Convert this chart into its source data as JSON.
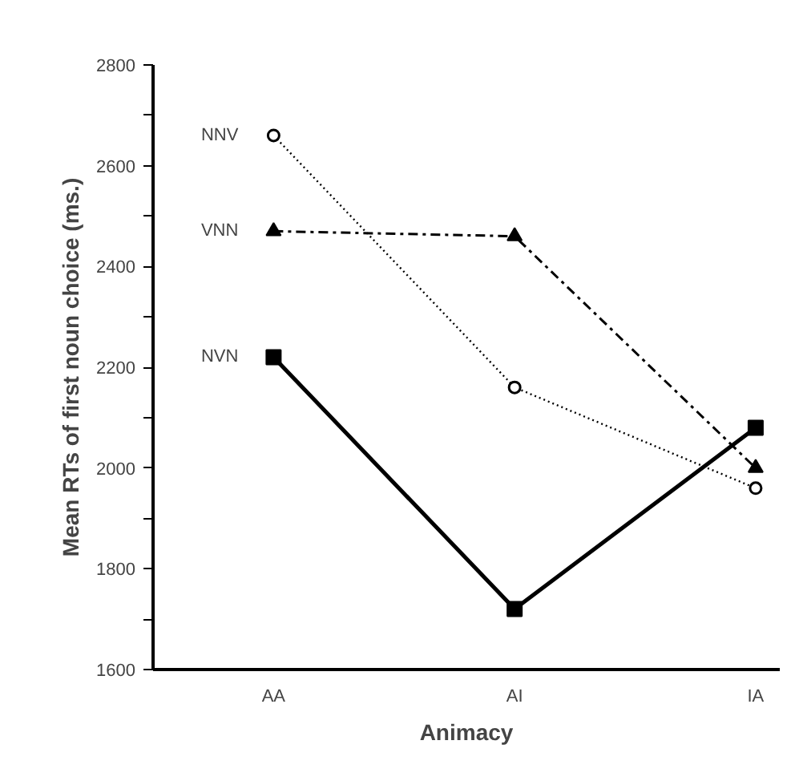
{
  "chart_data": {
    "type": "line",
    "xlabel": "Animacy",
    "ylabel": "Mean RTs of first noun choice (ms.)",
    "categories": [
      "AA",
      "AI",
      "IA"
    ],
    "ylim": [
      1600,
      2800
    ],
    "yticks": [
      1600,
      {
        "value": 1700,
        "label": null
      },
      1800,
      {
        "value": 1900,
        "label": null
      },
      2000,
      {
        "value": 2100,
        "label": null
      },
      2200,
      {
        "value": 2300,
        "label": null
      },
      2400,
      {
        "value": 2500,
        "label": null
      },
      2600,
      {
        "value": 2700,
        "label": null
      },
      2800
    ],
    "grid": false,
    "series": [
      {
        "name": "NNV",
        "color": "#000000",
        "values": [
          2660,
          2160,
          1960
        ],
        "marker": "circle",
        "line_style": "dotted"
      },
      {
        "name": "VNN",
        "color": "#000000",
        "values": [
          2470,
          2460,
          2000
        ],
        "marker": "triangle",
        "line_style": "dashed"
      },
      {
        "name": "NVN",
        "color": "#000000",
        "values": [
          2220,
          1720,
          2080
        ],
        "marker": "square",
        "line_style": "solid"
      }
    ]
  }
}
